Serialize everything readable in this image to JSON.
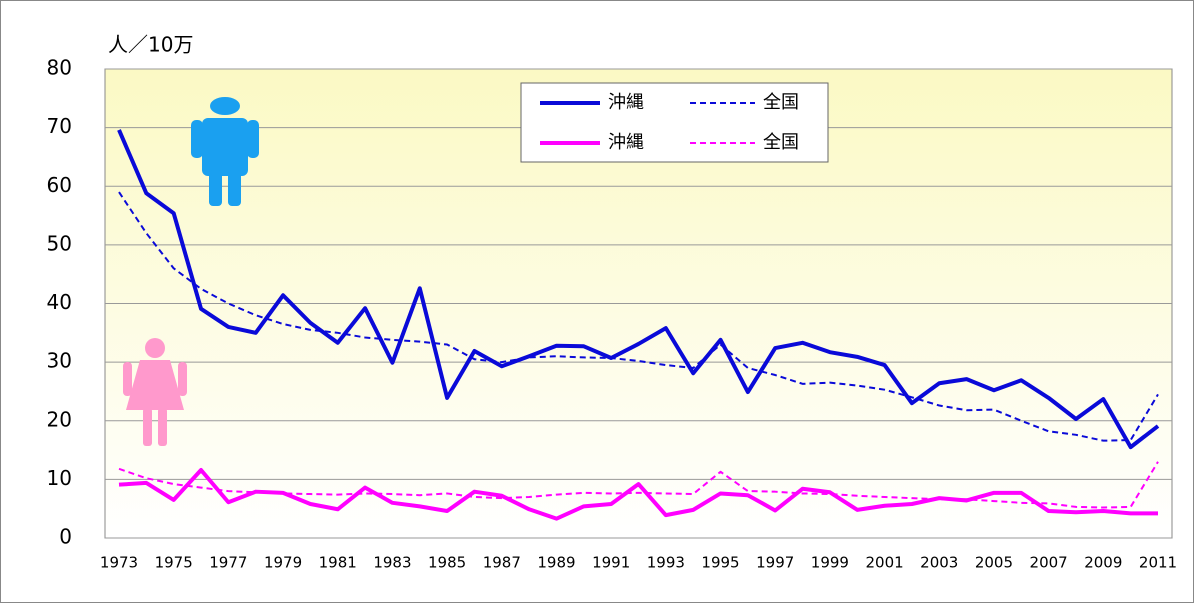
{
  "chart_data": {
    "type": "line",
    "ylabel": "人／10万",
    "categories": [
      "1973",
      null,
      "1975",
      null,
      "1977",
      null,
      "1979",
      null,
      "1981",
      null,
      "1983",
      null,
      "1985",
      null,
      "1987",
      null,
      "1989",
      null,
      "1991",
      null,
      "1993",
      null,
      "1995",
      null,
      "1997",
      null,
      "1999",
      null,
      "2001",
      null,
      "2003",
      null,
      "2005",
      null,
      "2007",
      null,
      "2009",
      null,
      "2011"
    ],
    "ylim": [
      0,
      80
    ],
    "yticks": [
      0,
      10,
      20,
      30,
      40,
      50,
      60,
      70,
      80
    ],
    "grid": true,
    "series": [
      {
        "name": "沖縄",
        "color": "#0a0ad8",
        "style": "solid",
        "values": [
          69.6,
          58.8,
          55.4,
          39.1,
          36.0,
          35.0,
          41.4,
          36.7,
          33.3,
          39.2,
          29.9,
          42.6,
          23.9,
          31.9,
          29.3,
          31.0,
          32.8,
          32.7,
          30.7,
          33.1,
          35.8,
          28.1,
          33.8,
          24.9,
          32.4,
          33.3,
          31.7,
          30.9,
          29.5,
          23.0,
          26.4,
          27.1,
          25.2,
          26.9,
          23.9,
          20.3,
          23.7,
          15.5,
          19.1
        ]
      },
      {
        "name": "全国",
        "color": "#0a0ad8",
        "style": "dashed",
        "values": [
          59,
          52,
          46,
          42.5,
          40,
          38,
          36.5,
          35.5,
          35,
          34.2,
          33.8,
          33.5,
          33,
          30.5,
          30,
          30.8,
          31,
          30.8,
          30.7,
          30.2,
          29.5,
          29,
          33,
          29,
          27.8,
          26.3,
          26.5,
          26,
          25.3,
          24,
          22.6,
          21.8,
          21.9,
          20,
          18.2,
          17.6,
          16.6,
          16.7,
          24.5
        ]
      },
      {
        "name": "沖縄",
        "color": "#ff00ff",
        "style": "solid",
        "values": [
          9.1,
          9.4,
          6.5,
          11.6,
          6.1,
          7.9,
          7.7,
          5.8,
          4.9,
          8.6,
          6.0,
          5.4,
          4.6,
          7.9,
          7.2,
          4.9,
          3.3,
          5.4,
          5.8,
          9.2,
          3.9,
          4.8,
          7.6,
          7.3,
          4.7,
          8.4,
          7.8,
          4.8,
          5.5,
          5.8,
          6.8,
          6.4,
          7.7,
          7.7,
          4.6,
          4.4,
          4.6,
          4.2,
          4.2
        ]
      },
      {
        "name": "全国",
        "color": "#ff00ff",
        "style": "dashed",
        "values": [
          11.8,
          10.2,
          9.2,
          8.6,
          8.0,
          7.8,
          7.6,
          7.5,
          7.4,
          7.6,
          7.5,
          7.3,
          7.6,
          7.0,
          6.8,
          7.0,
          7.4,
          7.7,
          7.6,
          7.7,
          7.6,
          7.5,
          11.3,
          8.0,
          7.9,
          7.6,
          7.5,
          7.2,
          7.0,
          6.8,
          6.6,
          6.6,
          6.3,
          6.0,
          5.9,
          5.3,
          5.2,
          5.3,
          13.0
        ]
      }
    ]
  }
}
